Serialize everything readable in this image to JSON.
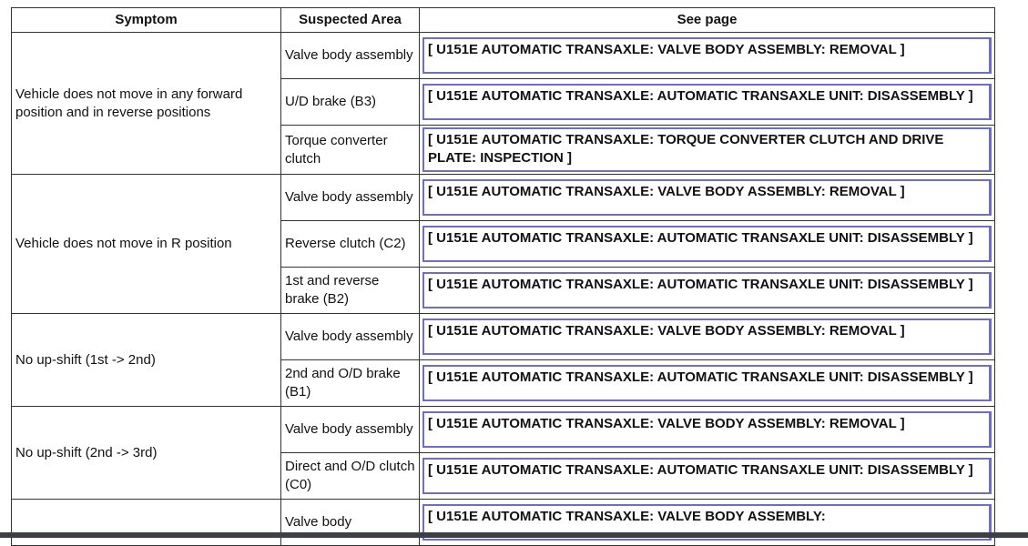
{
  "headers": {
    "symptom": "Symptom",
    "area": "Suspected Area",
    "page": "See page"
  },
  "groups": [
    {
      "symptom": "Vehicle does not move in any forward position and in reverse positions",
      "rows": [
        {
          "area": "Valve body assembly",
          "page": "[ U151E AUTOMATIC TRANSAXLE: VALVE BODY ASSEMBLY: REMOVAL ]"
        },
        {
          "area": "U/D brake (B3)",
          "page": "[ U151E AUTOMATIC TRANSAXLE: AUTOMATIC TRANSAXLE UNIT: DISASSEMBLY ]"
        },
        {
          "area": "Torque converter clutch",
          "page": "[ U151E AUTOMATIC TRANSAXLE: TORQUE CONVERTER CLUTCH AND DRIVE PLATE: INSPECTION ]"
        }
      ]
    },
    {
      "symptom": "Vehicle does not move in R position",
      "rows": [
        {
          "area": "Valve body assembly",
          "page": "[ U151E AUTOMATIC TRANSAXLE: VALVE BODY ASSEMBLY: REMOVAL ]"
        },
        {
          "area": "Reverse clutch (C2)",
          "page": "[ U151E AUTOMATIC TRANSAXLE: AUTOMATIC TRANSAXLE UNIT: DISASSEMBLY ]"
        },
        {
          "area": "1st and reverse brake (B2)",
          "page": "[ U151E AUTOMATIC TRANSAXLE: AUTOMATIC TRANSAXLE UNIT: DISASSEMBLY ]"
        }
      ]
    },
    {
      "symptom": "No up-shift (1st -> 2nd)",
      "rows": [
        {
          "area": "Valve body assembly",
          "page": "[ U151E AUTOMATIC TRANSAXLE: VALVE BODY ASSEMBLY: REMOVAL ]"
        },
        {
          "area": "2nd and O/D brake (B1)",
          "page": "[ U151E AUTOMATIC TRANSAXLE: AUTOMATIC TRANSAXLE UNIT: DISASSEMBLY ]"
        }
      ]
    },
    {
      "symptom": "No up-shift (2nd -> 3rd)",
      "rows": [
        {
          "area": "Valve body assembly",
          "page": "[ U151E AUTOMATIC TRANSAXLE: VALVE BODY ASSEMBLY: REMOVAL ]"
        },
        {
          "area": "Direct and O/D clutch (C0)",
          "page": "[ U151E AUTOMATIC TRANSAXLE: AUTOMATIC TRANSAXLE UNIT: DISASSEMBLY ]"
        }
      ]
    },
    {
      "symptom": "",
      "rows": [
        {
          "area": "Valve body",
          "page": "[ U151E AUTOMATIC TRANSAXLE: VALVE BODY ASSEMBLY:"
        }
      ]
    }
  ]
}
